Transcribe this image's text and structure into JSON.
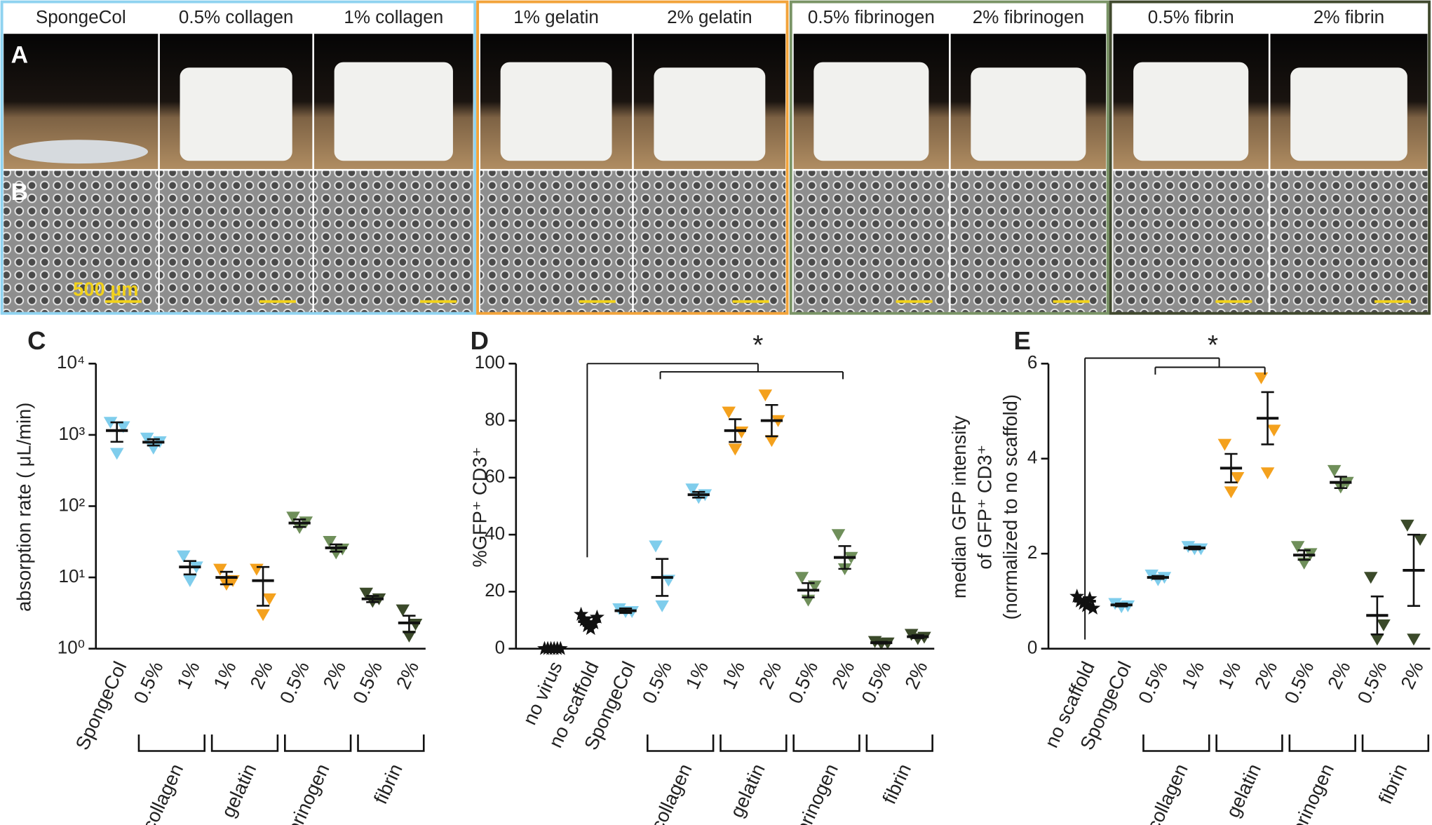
{
  "photo_panels": {
    "labels": [
      "A",
      "B"
    ],
    "scale_bar": "500 µm",
    "groups": [
      {
        "color": "#8fd3f0",
        "samples": [
          "SpongeCol",
          "0.5% collagen",
          "1% collagen"
        ]
      },
      {
        "color": "#f2a33a",
        "samples": [
          "1% gelatin",
          "2% gelatin"
        ]
      },
      {
        "color": "#7a9466",
        "samples": [
          "0.5% fibrinogen",
          "2% fibrinogen"
        ]
      },
      {
        "color": "#414a2e",
        "samples": [
          "0.5% fibrin",
          "2% fibrin"
        ]
      }
    ]
  },
  "chart_data": [
    {
      "type": "dot",
      "panel": "C",
      "ylabel": [
        "absorption rate ( μL/min)"
      ],
      "log_scale": true,
      "ylim": [
        1,
        10000
      ],
      "yticks": [
        {
          "value": 1,
          "label": "10⁰"
        },
        {
          "value": 10,
          "label": "10¹"
        },
        {
          "value": 100,
          "label": "10²"
        },
        {
          "value": 1000,
          "label": "10³"
        },
        {
          "value": 10000,
          "label": "10⁴"
        }
      ],
      "groups": [
        {
          "categories": [
            "SpongeCol"
          ],
          "color": "#7fcdec",
          "marker": "triangle",
          "points": [
            [
              1500,
              1300,
              550
            ]
          ],
          "means": [
            1150
          ],
          "errors": [
            350
          ]
        },
        {
          "name": "collagen",
          "categories": [
            "0.5%",
            "1%"
          ],
          "color": "#7fcdec",
          "marker": "triangle",
          "points": [
            [
              900,
              800,
              650
            ],
            [
              20,
              14,
              9
            ]
          ],
          "means": [
            790,
            14
          ],
          "errors": [
            80,
            3
          ]
        },
        {
          "name": "gelatin",
          "categories": [
            "1%",
            "2%"
          ],
          "color": "#f4a11d",
          "marker": "triangle",
          "points": [
            [
              13,
              9,
              8
            ],
            [
              13,
              5,
              3
            ]
          ],
          "means": [
            10,
            9
          ],
          "errors": [
            2,
            5
          ]
        },
        {
          "name": "fibrinogen",
          "categories": [
            "0.5%",
            "2%"
          ],
          "color": "#6f8f5a",
          "marker": "triangle",
          "points": [
            [
              70,
              60,
              50
            ],
            [
              32,
              25,
              22
            ]
          ],
          "means": [
            58,
            26
          ],
          "errors": [
            7,
            3
          ]
        },
        {
          "name": "fibrin",
          "categories": [
            "0.5%",
            "2%"
          ],
          "color": "#3b4a2a",
          "marker": "triangle",
          "points": [
            [
              6,
              5,
              4.6
            ],
            [
              3.5,
              2.2,
              1.5
            ]
          ],
          "means": [
            5,
            2.3
          ],
          "errors": [
            0.5,
            0.6
          ]
        }
      ]
    },
    {
      "type": "dot",
      "panel": "D",
      "ylabel": [
        "%GFP⁺ CD3⁺"
      ],
      "annotation": "*",
      "ylim": [
        0,
        100
      ],
      "yticks": [
        0,
        20,
        40,
        60,
        80,
        100
      ],
      "groups": [
        {
          "categories": [
            "no virus",
            "no scaffold"
          ],
          "color": "#111111",
          "marker": "star",
          "points": [
            [
              0,
              0,
              0,
              0,
              0,
              0
            ],
            [
              12,
              10,
              8,
              7,
              9,
              11
            ]
          ],
          "means": [
            0,
            9.5
          ],
          "errors": [
            0.5,
            1.5
          ]
        },
        {
          "categories": [
            "SpongeCol"
          ],
          "color": "#7fcdec",
          "marker": "triangle",
          "points": [
            [
              14,
              13,
              13
            ]
          ],
          "means": [
            13.3
          ],
          "errors": [
            0.8
          ]
        },
        {
          "name": "collagen",
          "categories": [
            "0.5%",
            "1%"
          ],
          "color": "#7fcdec",
          "marker": "triangle",
          "points": [
            [
              36,
              24,
              15
            ],
            [
              56,
              54,
              53
            ]
          ],
          "means": [
            25,
            54
          ],
          "errors": [
            6.5,
            1
          ]
        },
        {
          "name": "gelatin",
          "categories": [
            "1%",
            "2%"
          ],
          "color": "#f4a11d",
          "marker": "triangle",
          "points": [
            [
              83,
              76,
              70
            ],
            [
              89,
              80,
              73
            ]
          ],
          "means": [
            76.5,
            80
          ],
          "errors": [
            4,
            5.5
          ]
        },
        {
          "name": "fibrinogen",
          "categories": [
            "0.5%",
            "2%"
          ],
          "color": "#6f8f5a",
          "marker": "triangle",
          "points": [
            [
              25,
              22,
              17
            ],
            [
              40,
              32,
              28
            ]
          ],
          "means": [
            20.5,
            32
          ],
          "errors": [
            2.5,
            4
          ]
        },
        {
          "name": "fibrin",
          "categories": [
            "0.5%",
            "2%"
          ],
          "color": "#3b4a2a",
          "marker": "triangle",
          "points": [
            [
              2.5,
              2,
              1.8
            ],
            [
              5,
              4,
              3.5
            ]
          ],
          "means": [
            2.1,
            4.2
          ],
          "errors": [
            0.3,
            0.5
          ]
        }
      ]
    },
    {
      "type": "dot",
      "panel": "E",
      "ylabel": [
        "median GFP intensity",
        "of GFP⁺ CD3⁺",
        "(normalized to no scaffold)"
      ],
      "annotation": "*",
      "ylim": [
        0,
        6
      ],
      "yticks": [
        0,
        2,
        4,
        6
      ],
      "groups": [
        {
          "categories": [
            "no scaffold"
          ],
          "color": "#111111",
          "marker": "star",
          "points": [
            [
              1.1,
              1.0,
              0.95,
              0.9,
              1.05,
              0.85
            ]
          ],
          "means": [
            1.0
          ],
          "errors": [
            0.05
          ]
        },
        {
          "categories": [
            "SpongeCol"
          ],
          "color": "#7fcdec",
          "marker": "triangle",
          "points": [
            [
              0.95,
              0.9,
              0.88
            ]
          ],
          "means": [
            0.92
          ],
          "errors": [
            0.03
          ]
        },
        {
          "name": "collagen",
          "categories": [
            "0.5%",
            "1%"
          ],
          "color": "#7fcdec",
          "marker": "triangle",
          "points": [
            [
              1.55,
              1.5,
              1.45
            ],
            [
              2.15,
              2.1,
              2.1
            ]
          ],
          "means": [
            1.5,
            2.12
          ],
          "errors": [
            0.03,
            0.03
          ]
        },
        {
          "name": "gelatin",
          "categories": [
            "1%",
            "2%"
          ],
          "color": "#f4a11d",
          "marker": "triangle",
          "points": [
            [
              4.3,
              3.6,
              3.3
            ],
            [
              5.7,
              4.6,
              3.7
            ]
          ],
          "means": [
            3.8,
            4.85
          ],
          "errors": [
            0.3,
            0.55
          ]
        },
        {
          "name": "fibrinogen",
          "categories": [
            "0.5%",
            "2%"
          ],
          "color": "#6f8f5a",
          "marker": "triangle",
          "points": [
            [
              2.15,
              2.0,
              1.8
            ],
            [
              3.75,
              3.5,
              3.4
            ]
          ],
          "means": [
            1.97,
            3.5
          ],
          "errors": [
            0.1,
            0.12
          ]
        },
        {
          "name": "fibrin",
          "categories": [
            "0.5%",
            "2%"
          ],
          "color": "#3b4a2a",
          "marker": "triangle",
          "points": [
            [
              1.5,
              0.5,
              0.2
            ],
            [
              2.6,
              2.3,
              0.2
            ]
          ],
          "means": [
            0.7,
            1.65
          ],
          "errors": [
            0.4,
            0.75
          ]
        }
      ]
    }
  ]
}
